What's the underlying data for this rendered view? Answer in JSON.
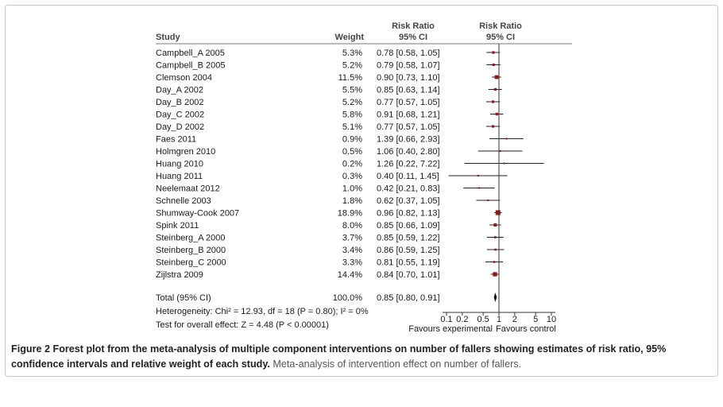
{
  "chart_data": {
    "type": "forest",
    "header": {
      "study": "Study",
      "weight": "Weight",
      "rr_text_1": "Risk Ratio",
      "rr_text_2": "95% CI",
      "rr_plot_1": "Risk Ratio",
      "rr_plot_2": "95% CI"
    },
    "studies": [
      {
        "name": "Campbell_A 2005",
        "weight": "5.3%",
        "ci_text": "0.78 [0.58, 1.05]",
        "rr": 0.78,
        "lo": 0.58,
        "hi": 1.05,
        "w": 5.3
      },
      {
        "name": "Campbell_B 2005",
        "weight": "5.2%",
        "ci_text": "0.79 [0.58, 1.07]",
        "rr": 0.79,
        "lo": 0.58,
        "hi": 1.07,
        "w": 5.2
      },
      {
        "name": "Clemson 2004",
        "weight": "11.5%",
        "ci_text": "0.90 [0.73, 1.10]",
        "rr": 0.9,
        "lo": 0.73,
        "hi": 1.1,
        "w": 11.5
      },
      {
        "name": "Day_A 2002",
        "weight": "5.5%",
        "ci_text": "0.85 [0.63, 1.14]",
        "rr": 0.85,
        "lo": 0.63,
        "hi": 1.14,
        "w": 5.5
      },
      {
        "name": "Day_B 2002",
        "weight": "5.2%",
        "ci_text": "0.77 [0.57, 1.05]",
        "rr": 0.77,
        "lo": 0.57,
        "hi": 1.05,
        "w": 5.2
      },
      {
        "name": "Day_C 2002",
        "weight": "5.8%",
        "ci_text": "0.91 [0.68, 1.21]",
        "rr": 0.91,
        "lo": 0.68,
        "hi": 1.21,
        "w": 5.8
      },
      {
        "name": "Day_D 2002",
        "weight": "5.1%",
        "ci_text": "0.77 [0.57, 1.05]",
        "rr": 0.77,
        "lo": 0.57,
        "hi": 1.05,
        "w": 5.1
      },
      {
        "name": "Faes 2011",
        "weight": "0.9%",
        "ci_text": "1.39 [0.66, 2.93]",
        "rr": 1.39,
        "lo": 0.66,
        "hi": 2.93,
        "w": 0.9
      },
      {
        "name": "Holmgren 2010",
        "weight": "0.5%",
        "ci_text": "1.06 [0.40, 2.80]",
        "rr": 1.06,
        "lo": 0.4,
        "hi": 2.8,
        "w": 0.5
      },
      {
        "name": "Huang 2010",
        "weight": "0.2%",
        "ci_text": "1.26 [0.22, 7.22]",
        "rr": 1.26,
        "lo": 0.22,
        "hi": 7.22,
        "w": 0.2
      },
      {
        "name": "Huang 2011",
        "weight": "0.3%",
        "ci_text": "0.40 [0.11, 1.45]",
        "rr": 0.4,
        "lo": 0.11,
        "hi": 1.45,
        "w": 0.3
      },
      {
        "name": "Neelemaat 2012",
        "weight": "1.0%",
        "ci_text": "0.42 [0.21, 0.83]",
        "rr": 0.42,
        "lo": 0.21,
        "hi": 0.83,
        "w": 1.0
      },
      {
        "name": "Schnelle 2003",
        "weight": "1.8%",
        "ci_text": "0.62 [0.37, 1.05]",
        "rr": 0.62,
        "lo": 0.37,
        "hi": 1.05,
        "w": 1.8
      },
      {
        "name": "Shumway-Cook 2007",
        "weight": "18.9%",
        "ci_text": "0.96 [0.82, 1.13]",
        "rr": 0.96,
        "lo": 0.82,
        "hi": 1.13,
        "w": 18.9
      },
      {
        "name": "Spink 2011",
        "weight": "8.0%",
        "ci_text": "0.85 [0.66, 1.09]",
        "rr": 0.85,
        "lo": 0.66,
        "hi": 1.09,
        "w": 8.0
      },
      {
        "name": "Steinberg_A 2000",
        "weight": "3.7%",
        "ci_text": "0.85 [0.59, 1.22]",
        "rr": 0.85,
        "lo": 0.59,
        "hi": 1.22,
        "w": 3.7
      },
      {
        "name": "Steinberg_B 2000",
        "weight": "3.4%",
        "ci_text": "0.86 [0.59, 1.25]",
        "rr": 0.86,
        "lo": 0.59,
        "hi": 1.25,
        "w": 3.4
      },
      {
        "name": "Steinberg_C 2000",
        "weight": "3.3%",
        "ci_text": "0.81 [0.55, 1.19]",
        "rr": 0.81,
        "lo": 0.55,
        "hi": 1.19,
        "w": 3.3
      },
      {
        "name": "Zijlstra 2009",
        "weight": "14.4%",
        "ci_text": "0.84 [0.70, 1.01]",
        "rr": 0.84,
        "lo": 0.7,
        "hi": 1.01,
        "w": 14.4
      }
    ],
    "total": {
      "name": "Total (95% CI)",
      "weight": "100.0%",
      "ci_text": "0.85 [0.80, 0.91]",
      "rr": 0.85,
      "lo": 0.8,
      "hi": 0.91
    },
    "heterogeneity": "Heterogeneity: Chi² = 12.93, df = 18 (P = 0.80); I² = 0%",
    "overall_effect": "Test for overall effect: Z = 4.48 (P < 0.00001)",
    "x_ticks": [
      0.1,
      0.2,
      0.5,
      1,
      2,
      5,
      10
    ],
    "x_tick_labels": [
      "0.1",
      "0.2",
      "0.5",
      "1",
      "2",
      "5",
      "10"
    ],
    "xlim": [
      0.1,
      10
    ],
    "x_scale": "log",
    "favours_left": "Favours experimental",
    "favours_right": "Favours control",
    "colors": {
      "marker": "#8b1a1a",
      "line": "#222222"
    }
  },
  "caption": {
    "label": "Figure 2",
    "bold_text": "Forest plot from the meta-analysis of multiple component interventions on number of fallers showing estimates of risk ratio, 95% confidence intervals and relative weight of each study.",
    "desc": "Meta-analysis of intervention effect on number of fallers."
  }
}
